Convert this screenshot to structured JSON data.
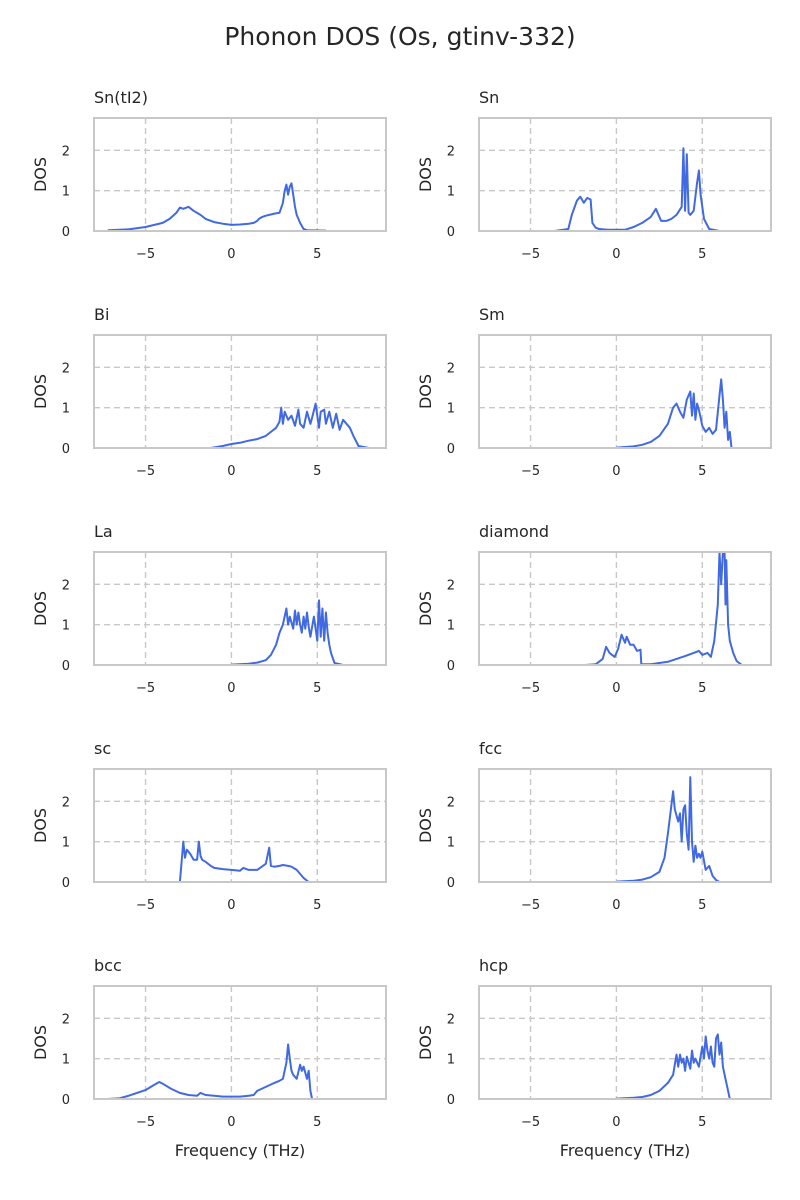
{
  "figure": {
    "title": "Phonon DOS (Os, gtinv-332)"
  },
  "chart_data": [
    {
      "type": "line",
      "title": "Sn(tI2)",
      "xlabel": "",
      "ylabel": "DOS",
      "xlim": [
        -8,
        9
      ],
      "ylim": [
        0,
        2.8
      ],
      "xticks": [
        -5,
        0,
        5
      ],
      "yticks": [
        0,
        1,
        2
      ],
      "grid": true,
      "color": "#4169e1",
      "x": [
        -7.2,
        -6,
        -5,
        -4,
        -3.6,
        -3.2,
        -3,
        -2.8,
        -2.5,
        -2.2,
        -1.8,
        -1.5,
        -1,
        -0.5,
        0,
        0.5,
        1,
        1.3,
        1.5,
        1.6,
        1.8,
        2,
        2.2,
        2.5,
        2.8,
        3,
        3.1,
        3.2,
        3.3,
        3.4,
        3.5,
        3.6,
        3.7,
        3.8,
        4,
        4.2,
        4.4,
        5.5
      ],
      "y": [
        0.02,
        0.04,
        0.1,
        0.2,
        0.3,
        0.45,
        0.58,
        0.55,
        0.6,
        0.5,
        0.4,
        0.3,
        0.22,
        0.18,
        0.15,
        0.16,
        0.18,
        0.2,
        0.25,
        0.3,
        0.35,
        0.38,
        0.4,
        0.43,
        0.45,
        0.7,
        1.0,
        1.15,
        0.9,
        1.1,
        1.18,
        0.9,
        0.6,
        0.4,
        0.2,
        0.05,
        0.02,
        0.01
      ]
    },
    {
      "type": "line",
      "title": "Sn",
      "xlabel": "",
      "ylabel": "DOS",
      "xlim": [
        -8,
        9
      ],
      "ylim": [
        0,
        2.8
      ],
      "xticks": [
        -5,
        0,
        5
      ],
      "yticks": [
        0,
        1,
        2
      ],
      "grid": true,
      "color": "#4169e1",
      "x": [
        -3.6,
        -2.8,
        -2.6,
        -2.3,
        -2.1,
        -1.9,
        -1.7,
        -1.5,
        -1.4,
        -1.2,
        -1,
        -0.5,
        0,
        0.5,
        1,
        1.5,
        2,
        2.3,
        2.6,
        2.9,
        3.2,
        3.5,
        3.8,
        3.9,
        4,
        4.1,
        4.2,
        4.3,
        4.5,
        4.7,
        4.8,
        4.9,
        5,
        5.1,
        5.4,
        6
      ],
      "y": [
        0,
        0.05,
        0.4,
        0.75,
        0.85,
        0.7,
        0.82,
        0.78,
        0.2,
        0.08,
        0.05,
        0.03,
        0.03,
        0.03,
        0.1,
        0.2,
        0.35,
        0.55,
        0.25,
        0.25,
        0.3,
        0.4,
        0.6,
        2.05,
        0.5,
        1.9,
        0.45,
        0.4,
        0.5,
        1.2,
        1.5,
        0.9,
        0.6,
        0.3,
        0.05,
        0
      ]
    },
    {
      "type": "line",
      "title": "Bi",
      "xlabel": "",
      "ylabel": "DOS",
      "xlim": [
        -8,
        9
      ],
      "ylim": [
        0,
        2.8
      ],
      "xticks": [
        -5,
        0,
        5
      ],
      "yticks": [
        0,
        1,
        2
      ],
      "grid": true,
      "color": "#4169e1",
      "x": [
        -1.2,
        -0.5,
        0,
        0.5,
        1,
        1.5,
        2,
        2.3,
        2.6,
        2.8,
        2.9,
        3,
        3.1,
        3.3,
        3.5,
        3.7,
        3.9,
        4,
        4.2,
        4.4,
        4.6,
        4.7,
        4.9,
        5.1,
        5.2,
        5.4,
        5.5,
        5.7,
        5.9,
        6.1,
        6.3,
        6.5,
        6.7,
        6.9,
        7.1,
        7.4,
        8
      ],
      "y": [
        0,
        0.05,
        0.1,
        0.13,
        0.18,
        0.22,
        0.3,
        0.4,
        0.5,
        0.65,
        1.0,
        0.6,
        0.9,
        0.7,
        0.8,
        0.55,
        0.95,
        0.6,
        0.5,
        0.9,
        0.6,
        0.75,
        1.1,
        0.5,
        0.9,
        0.95,
        0.6,
        0.9,
        0.5,
        0.85,
        0.45,
        0.7,
        0.6,
        0.5,
        0.3,
        0.05,
        0
      ]
    },
    {
      "type": "line",
      "title": "Sm",
      "xlabel": "",
      "ylabel": "DOS",
      "xlim": [
        -8,
        9
      ],
      "ylim": [
        0,
        2.8
      ],
      "xticks": [
        -5,
        0,
        5
      ],
      "yticks": [
        0,
        1,
        2
      ],
      "grid": true,
      "color": "#4169e1",
      "x": [
        0,
        1,
        1.5,
        2,
        2.5,
        3,
        3.3,
        3.5,
        3.7,
        3.9,
        4.1,
        4.3,
        4.4,
        4.5,
        4.6,
        4.7,
        4.8,
        5,
        5.2,
        5.4,
        5.6,
        5.8,
        6,
        6.1,
        6.2,
        6.3,
        6.4,
        6.5,
        6.6,
        6.7
      ],
      "y": [
        0.01,
        0.04,
        0.08,
        0.15,
        0.3,
        0.6,
        1.0,
        1.1,
        0.9,
        0.75,
        1.2,
        1.4,
        0.8,
        1.35,
        0.7,
        1.1,
        0.95,
        0.55,
        0.4,
        0.5,
        0.35,
        0.45,
        1.3,
        1.7,
        1.2,
        0.5,
        0.9,
        0.2,
        0.4,
        0
      ]
    },
    {
      "type": "line",
      "title": "La",
      "xlabel": "",
      "ylabel": "DOS",
      "xlim": [
        -8,
        9
      ],
      "ylim": [
        0,
        2.8
      ],
      "xticks": [
        -5,
        0,
        5
      ],
      "yticks": [
        0,
        1,
        2
      ],
      "grid": true,
      "color": "#4169e1",
      "x": [
        0,
        1,
        1.5,
        2,
        2.3,
        2.6,
        2.8,
        3,
        3.2,
        3.3,
        3.4,
        3.6,
        3.7,
        3.8,
        3.9,
        4,
        4.1,
        4.2,
        4.3,
        4.4,
        4.5,
        4.6,
        4.8,
        5,
        5.1,
        5.2,
        5.3,
        5.4,
        5.5,
        5.6,
        5.7,
        5.8,
        6,
        6.5
      ],
      "y": [
        0.01,
        0.03,
        0.06,
        0.12,
        0.25,
        0.5,
        0.8,
        1.0,
        1.4,
        1.0,
        1.2,
        0.9,
        1.35,
        1.0,
        1.3,
        1.0,
        0.8,
        1.2,
        0.9,
        1.3,
        0.95,
        0.7,
        1.2,
        0.6,
        1.6,
        0.7,
        1.4,
        0.6,
        1.3,
        0.8,
        0.5,
        0.3,
        0.05,
        0
      ]
    },
    {
      "type": "line",
      "title": "diamond",
      "xlabel": "",
      "ylabel": "DOS",
      "xlim": [
        -8,
        9
      ],
      "ylim": [
        0,
        2.8
      ],
      "xticks": [
        -5,
        0,
        5
      ],
      "yticks": [
        0,
        1,
        2
      ],
      "grid": true,
      "color": "#4169e1",
      "x": [
        -1.8,
        -1.2,
        -0.8,
        -0.6,
        -0.4,
        -0.1,
        0.1,
        0.3,
        0.5,
        0.6,
        0.8,
        1,
        1.2,
        1.4,
        1.45,
        2,
        3,
        3.5,
        4,
        4.5,
        4.8,
        5,
        5.3,
        5.5,
        5.7,
        5.9,
        6,
        6.1,
        6.2,
        6.3,
        6.35,
        6.4,
        6.5,
        6.6,
        6.8,
        7,
        7.3
      ],
      "y": [
        0,
        0.02,
        0.15,
        0.45,
        0.3,
        0.2,
        0.4,
        0.75,
        0.55,
        0.7,
        0.5,
        0.5,
        0.35,
        0.38,
        0.02,
        0.02,
        0.08,
        0.15,
        0.22,
        0.3,
        0.35,
        0.25,
        0.3,
        0.2,
        0.6,
        1.5,
        2.8,
        2.0,
        2.8,
        2.8,
        1.5,
        2.6,
        1.0,
        0.6,
        0.3,
        0.1,
        0
      ]
    },
    {
      "type": "line",
      "title": "sc",
      "xlabel": "",
      "ylabel": "DOS",
      "xlim": [
        -8,
        9
      ],
      "ylim": [
        0,
        2.8
      ],
      "xticks": [
        -5,
        0,
        5
      ],
      "yticks": [
        0,
        1,
        2
      ],
      "grid": true,
      "color": "#4169e1",
      "x": [
        -3,
        -2.9,
        -2.8,
        -2.7,
        -2.6,
        -2.4,
        -2.2,
        -2,
        -1.9,
        -1.8,
        -1.7,
        -1.5,
        -1.2,
        -1,
        -0.5,
        0,
        0.5,
        0.7,
        1,
        1.5,
        2,
        2.1,
        2.2,
        2.3,
        2.5,
        2.8,
        3,
        3.3,
        3.5,
        3.8,
        4,
        4.2,
        4.5
      ],
      "y": [
        0,
        0.5,
        1.0,
        0.6,
        0.8,
        0.7,
        0.55,
        0.55,
        1.0,
        0.65,
        0.55,
        0.5,
        0.4,
        0.35,
        0.32,
        0.3,
        0.28,
        0.35,
        0.3,
        0.3,
        0.45,
        0.65,
        0.85,
        0.4,
        0.38,
        0.4,
        0.42,
        0.4,
        0.38,
        0.3,
        0.2,
        0.1,
        0
      ]
    },
    {
      "type": "line",
      "title": "fcc",
      "xlabel": "",
      "ylabel": "DOS",
      "xlim": [
        -8,
        9
      ],
      "ylim": [
        0,
        2.8
      ],
      "xticks": [
        -5,
        0,
        5
      ],
      "yticks": [
        0,
        1,
        2
      ],
      "grid": true,
      "color": "#4169e1",
      "x": [
        0,
        1,
        1.5,
        2,
        2.5,
        2.8,
        3,
        3.2,
        3.3,
        3.4,
        3.6,
        3.7,
        3.8,
        3.9,
        4,
        4.1,
        4.2,
        4.3,
        4.4,
        4.5,
        4.6,
        4.7,
        4.8,
        4.9,
        5,
        5.2,
        5.4,
        5.6,
        5.8,
        6
      ],
      "y": [
        0.01,
        0.03,
        0.06,
        0.12,
        0.25,
        0.6,
        1.2,
        1.9,
        2.25,
        1.8,
        1.5,
        1.7,
        1.0,
        1.8,
        1.9,
        1.2,
        0.8,
        2.6,
        1.0,
        0.5,
        0.9,
        0.6,
        0.7,
        0.6,
        0.75,
        0.3,
        0.4,
        0.15,
        0.05,
        0
      ]
    },
    {
      "type": "line",
      "title": "bcc",
      "xlabel": "Frequency (THz)",
      "ylabel": "DOS",
      "xlim": [
        -8,
        9
      ],
      "ylim": [
        0,
        2.8
      ],
      "xticks": [
        -5,
        0,
        5
      ],
      "yticks": [
        0,
        1,
        2
      ],
      "grid": true,
      "color": "#4169e1",
      "x": [
        -7.2,
        -6.5,
        -6,
        -5.5,
        -5,
        -4.5,
        -4.2,
        -4,
        -3.5,
        -3,
        -2.5,
        -2,
        -1.8,
        -1.5,
        -1,
        -0.5,
        0,
        0.5,
        1,
        1.3,
        1.5,
        2,
        2.5,
        2.8,
        3,
        3.2,
        3.3,
        3.4,
        3.5,
        3.6,
        3.8,
        4,
        4.1,
        4.2,
        4.4,
        4.5,
        4.6,
        4.7
      ],
      "y": [
        0,
        0.02,
        0.08,
        0.15,
        0.22,
        0.35,
        0.42,
        0.38,
        0.25,
        0.15,
        0.1,
        0.08,
        0.15,
        0.1,
        0.08,
        0.06,
        0.06,
        0.06,
        0.08,
        0.1,
        0.2,
        0.3,
        0.4,
        0.45,
        0.5,
        0.9,
        1.35,
        1.0,
        0.7,
        0.6,
        0.5,
        0.85,
        0.7,
        0.8,
        0.5,
        0.7,
        0.2,
        0
      ]
    },
    {
      "type": "line",
      "title": "hcp",
      "xlabel": "Frequency (THz)",
      "ylabel": "DOS",
      "xlim": [
        -8,
        9
      ],
      "ylim": [
        0,
        2.8
      ],
      "xticks": [
        -5,
        0,
        5
      ],
      "yticks": [
        0,
        1,
        2
      ],
      "grid": true,
      "color": "#4169e1",
      "x": [
        0,
        1,
        1.5,
        2,
        2.5,
        3,
        3.3,
        3.5,
        3.6,
        3.7,
        3.8,
        3.9,
        4,
        4.1,
        4.2,
        4.3,
        4.4,
        4.5,
        4.6,
        4.8,
        5,
        5.1,
        5.2,
        5.3,
        5.4,
        5.5,
        5.6,
        5.7,
        5.8,
        5.9,
        6,
        6.1,
        6.2,
        6.3,
        6.5,
        6.6
      ],
      "y": [
        0.01,
        0.03,
        0.05,
        0.1,
        0.2,
        0.4,
        0.6,
        1.1,
        0.8,
        1.1,
        0.9,
        1.0,
        0.7,
        1.05,
        0.9,
        0.75,
        1.2,
        0.9,
        1.0,
        0.8,
        1.3,
        1.0,
        1.55,
        1.2,
        1.0,
        1.3,
        0.9,
        0.8,
        1.5,
        1.6,
        1.1,
        1.4,
        0.8,
        0.6,
        0.2,
        0
      ]
    }
  ]
}
